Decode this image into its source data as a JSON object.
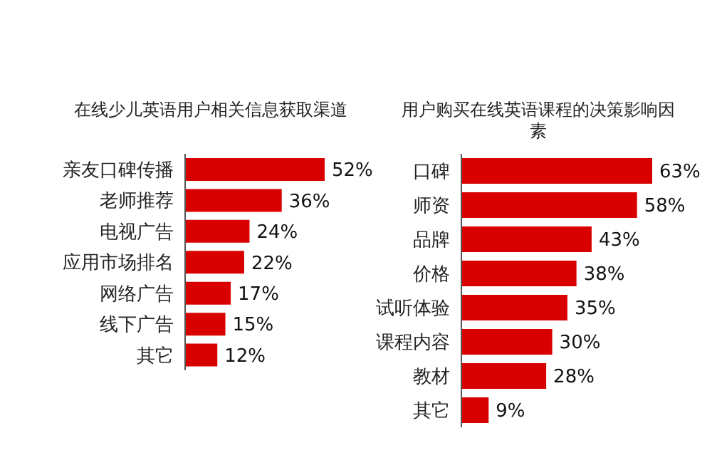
{
  "chart_data": [
    {
      "type": "bar",
      "orientation": "horizontal",
      "title": "在线少儿英语用户相关信息获取渠道",
      "categories": [
        "亲友口碑传播",
        "老师推荐",
        "电视广告",
        "应用市场排名",
        "网络广告",
        "线下广告",
        "其它"
      ],
      "values": [
        52,
        36,
        24,
        22,
        17,
        15,
        12
      ],
      "value_labels": [
        "52%",
        "36%",
        "24%",
        "22%",
        "17%",
        "15%",
        "12%"
      ],
      "color": "#d90000",
      "legend": false,
      "grid": false
    },
    {
      "type": "bar",
      "orientation": "horizontal",
      "title": "用户购买在线英语课程的决策影响因素",
      "categories": [
        "口碑",
        "师资",
        "品牌",
        "价格",
        "试听体验",
        "课程内容",
        "教材",
        "其它"
      ],
      "values": [
        63,
        58,
        43,
        38,
        35,
        30,
        28,
        9
      ],
      "value_labels": [
        "63%",
        "58%",
        "43%",
        "38%",
        "35%",
        "30%",
        "28%",
        "9%"
      ],
      "color": "#d90000",
      "legend": false,
      "grid": false
    }
  ]
}
